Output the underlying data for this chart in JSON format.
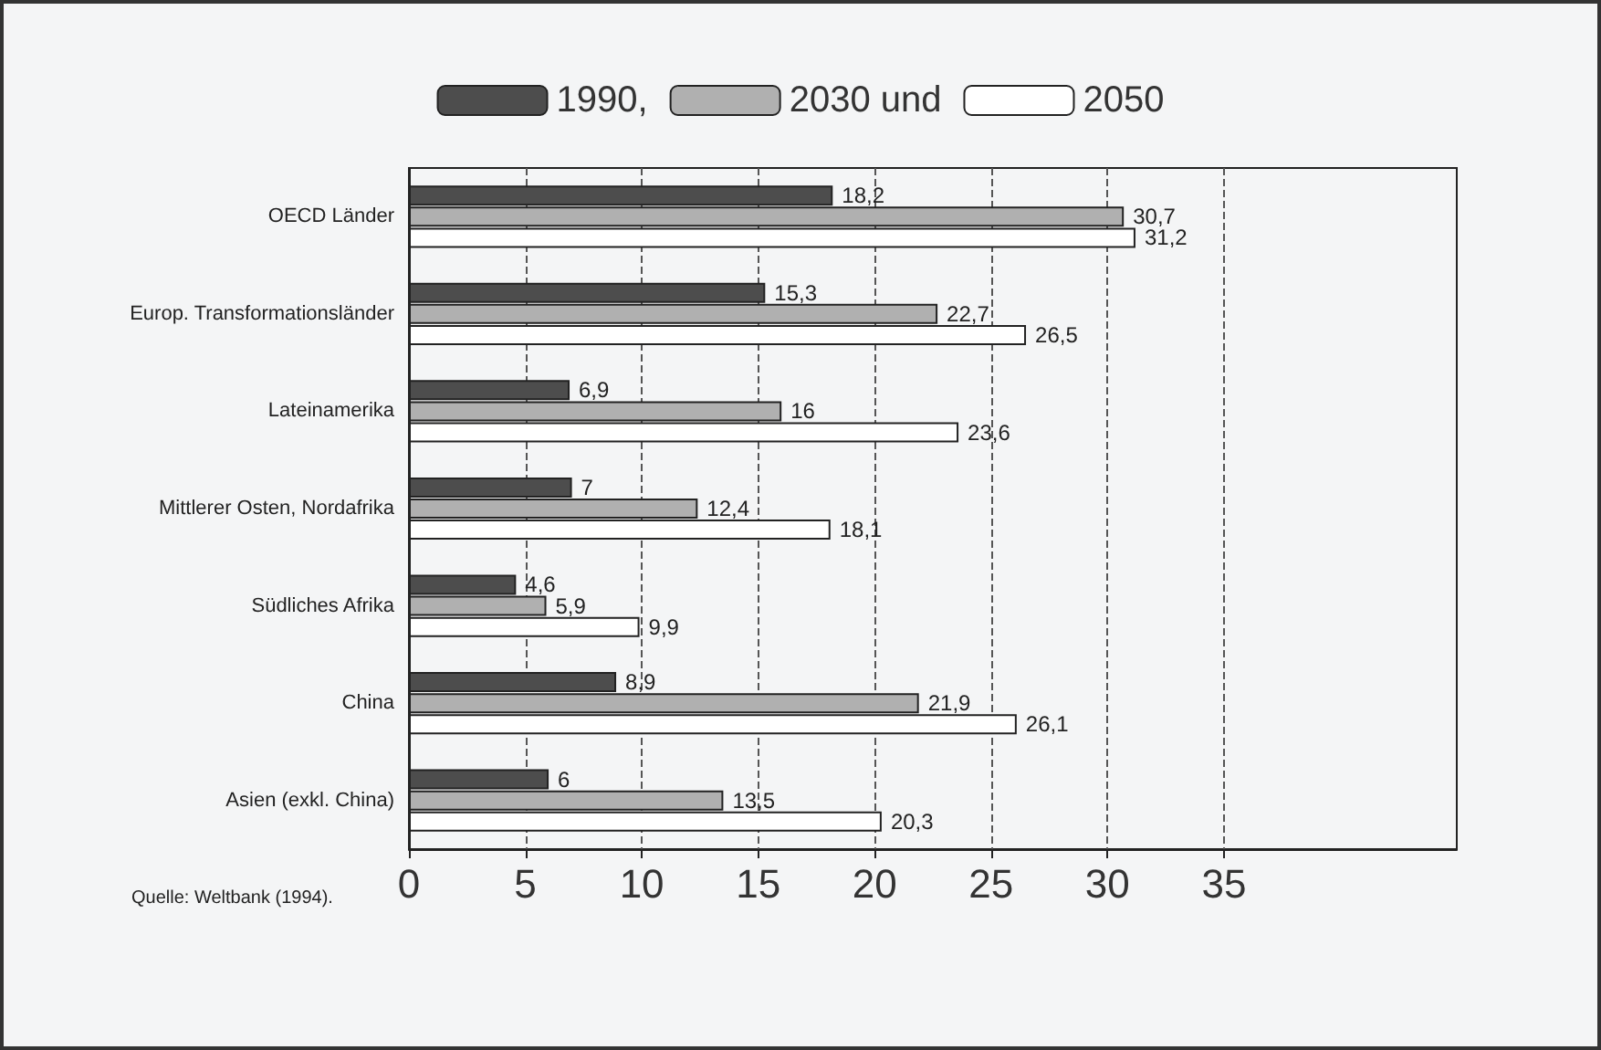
{
  "chart_data": {
    "type": "bar",
    "orientation": "horizontal",
    "categories": [
      "OECD Länder",
      "Europ. Transformationsländer",
      "Lateinamerika",
      "Mittlerer Osten, Nordafrika",
      "Südliches Afrika",
      "China",
      "Asien (exkl. China)"
    ],
    "series": [
      {
        "name": "1990,",
        "color": "#4d4d4d",
        "values": [
          18.2,
          15.3,
          6.9,
          7,
          4.6,
          8.9,
          6
        ],
        "value_labels": [
          "18,2",
          "15,3",
          "6,9",
          "7",
          "4,6",
          "8,9",
          "6"
        ]
      },
      {
        "name": "2030 und",
        "color": "#b0b0b0",
        "values": [
          30.7,
          22.7,
          16,
          12.4,
          5.9,
          21.9,
          13.5
        ],
        "value_labels": [
          "30,7",
          "22,7",
          "16",
          "12,4",
          "5,9",
          "21,9",
          "13,5"
        ]
      },
      {
        "name": "2050",
        "color": "#ffffff",
        "values": [
          31.2,
          26.5,
          23.6,
          18.1,
          9.9,
          26.1,
          20.3
        ],
        "value_labels": [
          "31,2",
          "26,5",
          "23,6",
          "18,1",
          "9,9",
          "26,1",
          "20,3"
        ]
      }
    ],
    "xlim": [
      0,
      45
    ],
    "xticks": [
      0,
      5,
      10,
      15,
      20,
      25,
      30,
      35
    ],
    "grid": "x",
    "legend": "top",
    "annotations": [
      "Quelle: Weltbank (1994)."
    ]
  }
}
